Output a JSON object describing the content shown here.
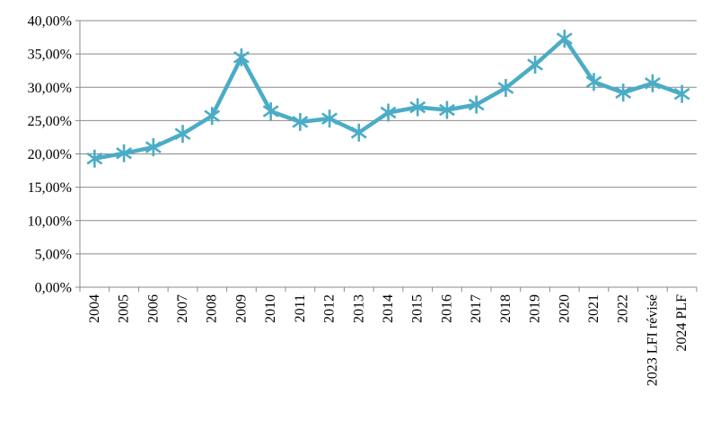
{
  "chart_data": {
    "type": "line",
    "title": "",
    "xlabel": "",
    "ylabel": "",
    "categories": [
      "2004",
      "2005",
      "2006",
      "2007",
      "2008",
      "2009",
      "2010",
      "2011",
      "2012",
      "2013",
      "2014",
      "2015",
      "2016",
      "2017",
      "2018",
      "2019",
      "2020",
      "2021",
      "2022",
      "2023 LFI révisé",
      "2024 PLF"
    ],
    "series": [
      {
        "name": "",
        "values": [
          19.3,
          20.1,
          21.0,
          23.0,
          25.7,
          34.5,
          26.4,
          24.8,
          25.3,
          23.2,
          26.2,
          27.0,
          26.6,
          27.4,
          29.9,
          33.4,
          37.3,
          30.8,
          29.2,
          30.6,
          29.0
        ]
      }
    ],
    "ylim": [
      0,
      40
    ],
    "y_tick_step": 5,
    "y_tick_labels": [
      "0,00%",
      "5,00%",
      "10,00%",
      "15,00%",
      "20,00%",
      "25,00%",
      "30,00%",
      "35,00%",
      "40,00%"
    ],
    "x_tick_rotation": -90,
    "grid": true,
    "legend_position": "none",
    "marker": "asterisk",
    "colors": {
      "line": "#4BACC6",
      "marker": "#4BACC6",
      "grid": "#898989",
      "axis": "#898989",
      "text": "#000000",
      "background": "#FFFFFF"
    }
  }
}
